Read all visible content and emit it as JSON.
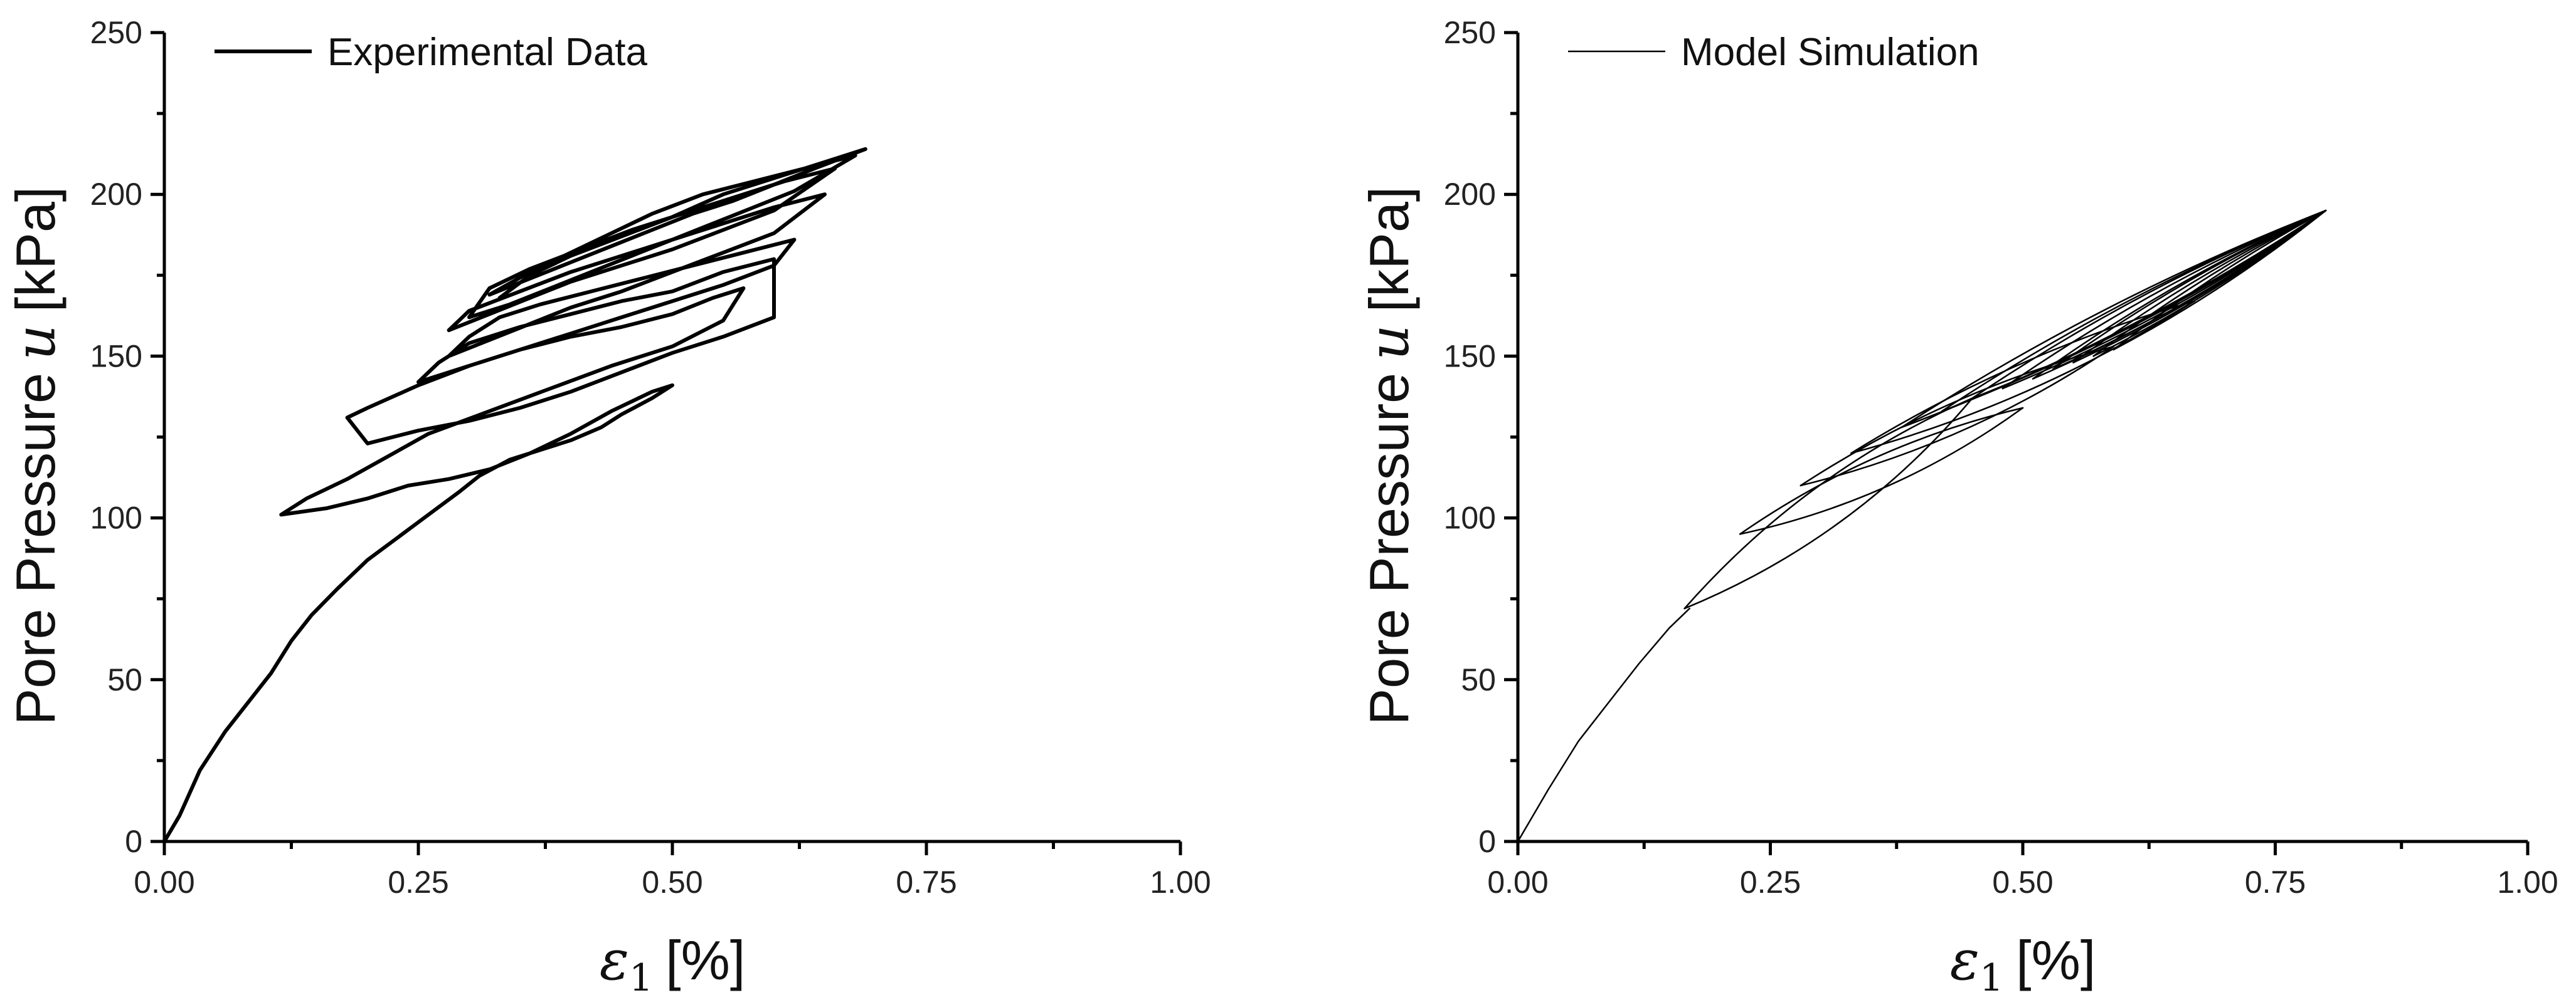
{
  "chart_data": [
    {
      "type": "line",
      "xlabel": "[%]",
      "xlabel_symbol": "ε",
      "xlabel_subscript": "1",
      "ylabel": "Pore Pressure",
      "ylabel_symbol": "u",
      "ylabel_unit": "[kPa]",
      "xlim": [
        0,
        1
      ],
      "ylim": [
        0,
        250
      ],
      "xticks": [
        "0.00",
        "0.25",
        "0.50",
        "0.75",
        "1.00"
      ],
      "yticks": [
        "0",
        "50",
        "100",
        "150",
        "200",
        "250"
      ],
      "grid": false,
      "legend_position": "top-left",
      "series": [
        {
          "name": "Experimental Data",
          "color": "#000000",
          "line": "thick",
          "points": [
            [
              0.0,
              0
            ],
            [
              0.015,
              8
            ],
            [
              0.035,
              22
            ],
            [
              0.06,
              34
            ],
            [
              0.085,
              44
            ],
            [
              0.105,
              52
            ],
            [
              0.125,
              62
            ],
            [
              0.145,
              70
            ],
            [
              0.17,
              78
            ],
            [
              0.2,
              87
            ],
            [
              0.23,
              94
            ],
            [
              0.26,
              101
            ],
            [
              0.29,
              108
            ],
            [
              0.31,
              113
            ],
            [
              0.34,
              118
            ],
            [
              0.37,
              121
            ],
            [
              0.4,
              124
            ],
            [
              0.43,
              128
            ],
            [
              0.45,
              132
            ],
            [
              0.48,
              137
            ],
            [
              0.5,
              141
            ],
            [
              0.48,
              139
            ],
            [
              0.44,
              133
            ],
            [
              0.4,
              126
            ],
            [
              0.36,
              120
            ],
            [
              0.32,
              115
            ],
            [
              0.28,
              112
            ],
            [
              0.24,
              110
            ],
            [
              0.2,
              106
            ],
            [
              0.16,
              103
            ],
            [
              0.115,
              101
            ],
            [
              0.14,
              106
            ],
            [
              0.18,
              112
            ],
            [
              0.22,
              119
            ],
            [
              0.26,
              126
            ],
            [
              0.32,
              133
            ],
            [
              0.38,
              140
            ],
            [
              0.44,
              147
            ],
            [
              0.5,
              153
            ],
            [
              0.55,
              161
            ],
            [
              0.57,
              171
            ],
            [
              0.54,
              168
            ],
            [
              0.5,
              163
            ],
            [
              0.45,
              159
            ],
            [
              0.4,
              156
            ],
            [
              0.35,
              152
            ],
            [
              0.3,
              147
            ],
            [
              0.25,
              141
            ],
            [
              0.2,
              134
            ],
            [
              0.18,
              131
            ],
            [
              0.2,
              123
            ],
            [
              0.25,
              127
            ],
            [
              0.3,
              130
            ],
            [
              0.35,
              134
            ],
            [
              0.4,
              139
            ],
            [
              0.45,
              145
            ],
            [
              0.5,
              151
            ],
            [
              0.55,
              156
            ],
            [
              0.6,
              162
            ],
            [
              0.6,
              180
            ],
            [
              0.55,
              176
            ],
            [
              0.5,
              170
            ],
            [
              0.45,
              167
            ],
            [
              0.4,
              163
            ],
            [
              0.35,
              159
            ],
            [
              0.3,
              154
            ],
            [
              0.27,
              148
            ],
            [
              0.25,
              142
            ],
            [
              0.3,
              147
            ],
            [
              0.35,
              152
            ],
            [
              0.4,
              157
            ],
            [
              0.45,
              162
            ],
            [
              0.5,
              167
            ],
            [
              0.55,
              172
            ],
            [
              0.6,
              178
            ],
            [
              0.62,
              186
            ],
            [
              0.57,
              182
            ],
            [
              0.52,
              178
            ],
            [
              0.47,
              174
            ],
            [
              0.42,
              170
            ],
            [
              0.37,
              166
            ],
            [
              0.33,
              162
            ],
            [
              0.3,
              156
            ],
            [
              0.28,
              150
            ],
            [
              0.32,
              155
            ],
            [
              0.36,
              160
            ],
            [
              0.4,
              165
            ],
            [
              0.45,
              170
            ],
            [
              0.5,
              176
            ],
            [
              0.55,
              182
            ],
            [
              0.6,
              188
            ],
            [
              0.65,
              200
            ],
            [
              0.6,
              196
            ],
            [
              0.55,
              191
            ],
            [
              0.5,
              186
            ],
            [
              0.45,
              181
            ],
            [
              0.4,
              176
            ],
            [
              0.35,
              170
            ],
            [
              0.3,
              164
            ],
            [
              0.28,
              158
            ],
            [
              0.32,
              163
            ],
            [
              0.36,
              168
            ],
            [
              0.4,
              173
            ],
            [
              0.45,
              178
            ],
            [
              0.5,
              183
            ],
            [
              0.55,
              189
            ],
            [
              0.6,
              195
            ],
            [
              0.66,
              208
            ],
            [
              0.61,
              204
            ],
            [
              0.56,
              199
            ],
            [
              0.51,
              194
            ],
            [
              0.46,
              189
            ],
            [
              0.41,
              183
            ],
            [
              0.36,
              177
            ],
            [
              0.32,
              171
            ],
            [
              0.3,
              162
            ],
            [
              0.34,
              166
            ],
            [
              0.38,
              171
            ],
            [
              0.42,
              176
            ],
            [
              0.46,
              181
            ],
            [
              0.5,
              186
            ],
            [
              0.54,
              191
            ],
            [
              0.58,
              196
            ],
            [
              0.62,
              201
            ],
            [
              0.68,
              212
            ],
            [
              0.63,
              208
            ],
            [
              0.58,
              204
            ],
            [
              0.53,
              200
            ],
            [
              0.48,
              194
            ],
            [
              0.44,
              188
            ],
            [
              0.4,
              182
            ],
            [
              0.36,
              176
            ],
            [
              0.32,
              169
            ],
            [
              0.36,
              174
            ],
            [
              0.4,
              179
            ],
            [
              0.44,
              184
            ],
            [
              0.48,
              189
            ],
            [
              0.52,
              194
            ],
            [
              0.56,
              198
            ],
            [
              0.6,
              203
            ],
            [
              0.64,
              208
            ],
            [
              0.69,
              214
            ],
            [
              0.65,
              210
            ],
            [
              0.6,
              205
            ],
            [
              0.55,
              200
            ],
            [
              0.5,
              193
            ],
            [
              0.45,
              187
            ],
            [
              0.4,
              181
            ],
            [
              0.36,
              175
            ],
            [
              0.33,
              168
            ]
          ]
        }
      ]
    },
    {
      "type": "line",
      "xlabel": "[%]",
      "xlabel_symbol": "ε",
      "xlabel_subscript": "1",
      "ylabel": "Pore Pressure",
      "ylabel_symbol": "u",
      "ylabel_unit": "[kPa]",
      "xlim": [
        0,
        1
      ],
      "ylim": [
        0,
        250
      ],
      "xticks": [
        "0.00",
        "0.25",
        "0.50",
        "0.75",
        "1.00"
      ],
      "yticks": [
        "0",
        "50",
        "100",
        "150",
        "200",
        "250"
      ],
      "grid": false,
      "legend_position": "top-left",
      "series": [
        {
          "name": "Model Simulation",
          "color": "#000000",
          "line": "thin",
          "initial_loading": [
            [
              0.0,
              0
            ],
            [
              0.03,
              16
            ],
            [
              0.06,
              31
            ],
            [
              0.09,
              43
            ],
            [
              0.12,
              55
            ],
            [
              0.15,
              66
            ],
            [
              0.17,
              72
            ]
          ],
          "first_loop": {
            "low": [
              0.165,
              72
            ],
            "high": [
              0.45,
              137
            ]
          },
          "loop_turning_points": [
            [
              0.165,
              72
            ],
            [
              0.22,
              95
            ],
            [
              0.28,
              110
            ],
            [
              0.33,
              120
            ],
            [
              0.38,
              128
            ],
            [
              0.42,
              133
            ],
            [
              0.45,
              137
            ],
            [
              0.48,
              140
            ],
            [
              0.51,
              143
            ],
            [
              0.53,
              146
            ],
            [
              0.55,
              148
            ],
            [
              0.57,
              150
            ],
            [
              0.59,
              152
            ]
          ],
          "converged_high": [
            0.8,
            195
          ]
        }
      ]
    }
  ]
}
